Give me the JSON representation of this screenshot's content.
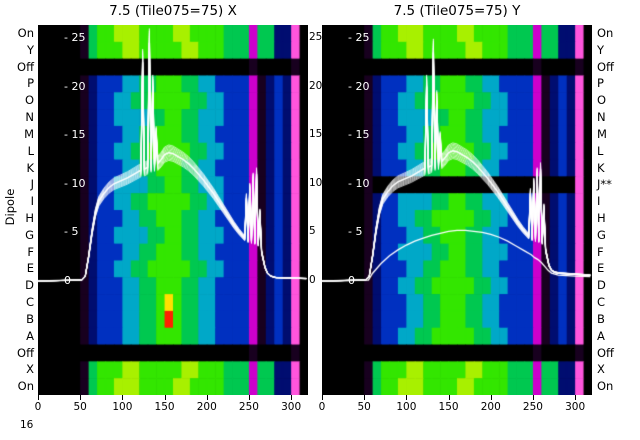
{
  "corner_label": "16",
  "chart_data": {
    "type": "heatmap",
    "ylabel": "Dipole",
    "x_ticks": [
      0,
      50,
      100,
      150,
      200,
      250,
      300
    ],
    "x_max": 320,
    "power_tick_values": [
      25,
      20,
      15,
      10,
      5,
      0
    ],
    "inner_tick_labels": [
      "- 25",
      "- 20",
      "- 15",
      "- 10",
      "- 5",
      "0"
    ],
    "mid_tick_labels": [
      "25",
      "20",
      "15",
      "10",
      "5",
      "0"
    ],
    "row_labels_left": [
      "On",
      "Y",
      "Off",
      "P",
      "O",
      "N",
      "M",
      "L",
      "K",
      "J",
      "I",
      "H",
      "G",
      "F",
      "E",
      "D",
      "C",
      "B",
      "A",
      "Off",
      "X",
      "On"
    ],
    "row_labels_right": [
      "On",
      "Y",
      "Off",
      "P",
      "O",
      "N",
      "M",
      "L",
      "K",
      "J**",
      "I",
      "H",
      "G",
      "F",
      "E",
      "D",
      "C",
      "B",
      "A",
      "Off",
      "X",
      "On"
    ],
    "line_color": "#ffffff",
    "line_factors": [
      1,
      0.97,
      1.03,
      0.95,
      1.05,
      0.98,
      1.02,
      0.96,
      1.04,
      0.99,
      1.01,
      0.94,
      1.06,
      1.0
    ],
    "panels": [
      {
        "title": "7.5 (Tile075=75) X",
        "lines_base": [
          [
            0,
            0
          ],
          [
            52,
            0.1
          ],
          [
            56,
            0.5
          ],
          [
            60,
            2.5
          ],
          [
            64,
            5
          ],
          [
            68,
            7
          ],
          [
            72,
            8.2
          ],
          [
            78,
            9
          ],
          [
            84,
            9.6
          ],
          [
            90,
            10
          ],
          [
            98,
            10.3
          ],
          [
            106,
            10.6
          ],
          [
            114,
            11
          ],
          [
            120,
            11.3
          ],
          [
            122,
            11.4
          ],
          [
            124,
            22.5
          ],
          [
            126,
            11.5
          ],
          [
            130,
            11.7
          ],
          [
            132,
            24.5
          ],
          [
            134,
            11.9
          ],
          [
            136,
            20
          ],
          [
            138,
            12
          ],
          [
            140,
            15
          ],
          [
            142,
            12.1
          ],
          [
            146,
            12.5
          ],
          [
            150,
            13
          ],
          [
            155,
            13.2
          ],
          [
            160,
            13.1
          ],
          [
            166,
            12.8
          ],
          [
            172,
            12.5
          ],
          [
            178,
            12.1
          ],
          [
            184,
            11.6
          ],
          [
            190,
            11
          ],
          [
            196,
            10.4
          ],
          [
            202,
            9.7
          ],
          [
            208,
            9
          ],
          [
            214,
            8.2
          ],
          [
            220,
            7.4
          ],
          [
            226,
            6.6
          ],
          [
            232,
            5.8
          ],
          [
            238,
            5.1
          ],
          [
            242,
            4.7
          ],
          [
            245,
            4.4
          ],
          [
            247,
            8.5
          ],
          [
            249,
            4.2
          ],
          [
            251,
            9.5
          ],
          [
            253,
            4.1
          ],
          [
            255,
            10.5
          ],
          [
            257,
            4
          ],
          [
            259,
            11
          ],
          [
            261,
            3.8
          ],
          [
            263,
            7
          ],
          [
            265,
            3
          ],
          [
            267,
            2.2
          ],
          [
            269,
            1.4
          ],
          [
            272,
            0.8
          ],
          [
            276,
            0.5
          ],
          [
            282,
            0.35
          ],
          [
            300,
            0.3
          ],
          [
            318,
            0.25
          ]
        ],
        "weak_line": null
      },
      {
        "title": "7.5 (Tile075=75) Y",
        "lines_base": [
          [
            0,
            0
          ],
          [
            52,
            0.1
          ],
          [
            56,
            0.5
          ],
          [
            60,
            2.6
          ],
          [
            64,
            5.2
          ],
          [
            68,
            7.2
          ],
          [
            72,
            8.4
          ],
          [
            78,
            9.2
          ],
          [
            84,
            9.8
          ],
          [
            90,
            10.2
          ],
          [
            98,
            10.5
          ],
          [
            106,
            10.8
          ],
          [
            114,
            11.2
          ],
          [
            120,
            11.5
          ],
          [
            122,
            11.6
          ],
          [
            124,
            20
          ],
          [
            126,
            11.7
          ],
          [
            130,
            11.9
          ],
          [
            132,
            23.5
          ],
          [
            134,
            12.1
          ],
          [
            136,
            18.5
          ],
          [
            138,
            12.2
          ],
          [
            140,
            14.5
          ],
          [
            142,
            12.3
          ],
          [
            146,
            12.7
          ],
          [
            150,
            13.2
          ],
          [
            155,
            13.4
          ],
          [
            160,
            13.3
          ],
          [
            166,
            13
          ],
          [
            172,
            12.7
          ],
          [
            178,
            12.3
          ],
          [
            184,
            11.8
          ],
          [
            190,
            11.2
          ],
          [
            196,
            10.6
          ],
          [
            202,
            9.9
          ],
          [
            208,
            9.2
          ],
          [
            214,
            8.4
          ],
          [
            220,
            7.6
          ],
          [
            226,
            6.8
          ],
          [
            232,
            6
          ],
          [
            238,
            5.3
          ],
          [
            242,
            4.9
          ],
          [
            245,
            4.6
          ],
          [
            247,
            9
          ],
          [
            249,
            4.4
          ],
          [
            251,
            10
          ],
          [
            253,
            4.3
          ],
          [
            255,
            11
          ],
          [
            257,
            4.2
          ],
          [
            259,
            11.5
          ],
          [
            261,
            4
          ],
          [
            263,
            7.5
          ],
          [
            265,
            3.2
          ],
          [
            267,
            2.4
          ],
          [
            269,
            1.6
          ],
          [
            272,
            1.1
          ],
          [
            276,
            0.9
          ],
          [
            282,
            0.8
          ],
          [
            300,
            0.7
          ],
          [
            318,
            0.6
          ]
        ],
        "weak_line": [
          [
            0,
            0
          ],
          [
            55,
            0.1
          ],
          [
            60,
            0.8
          ],
          [
            70,
            1.8
          ],
          [
            80,
            2.6
          ],
          [
            90,
            3.2
          ],
          [
            100,
            3.7
          ],
          [
            110,
            4.1
          ],
          [
            120,
            4.4
          ],
          [
            130,
            4.7
          ],
          [
            140,
            4.9
          ],
          [
            150,
            5.1
          ],
          [
            160,
            5.2
          ],
          [
            170,
            5.2
          ],
          [
            180,
            5.1
          ],
          [
            190,
            5
          ],
          [
            200,
            4.8
          ],
          [
            210,
            4.5
          ],
          [
            220,
            4.1
          ],
          [
            230,
            3.6
          ],
          [
            240,
            3.1
          ],
          [
            248,
            2.7
          ],
          [
            252,
            2.4
          ],
          [
            256,
            2.2
          ],
          [
            260,
            1.9
          ],
          [
            264,
            1.5
          ],
          [
            268,
            1.1
          ],
          [
            272,
            0.8
          ],
          [
            280,
            0.6
          ],
          [
            300,
            0.5
          ],
          [
            318,
            0.45
          ]
        ]
      }
    ],
    "heatmap": {
      "palette": [
        "#000000",
        "#18001f",
        "#000d70",
        "#0030c0",
        "#00a8c8",
        "#00c850",
        "#33e600",
        "#a8f000",
        "#cc00cc",
        "#ff55dd",
        "#ffe000",
        "#ff2200"
      ],
      "patterns": {
        "on": [
          [
            5,
            0
          ],
          [
            1,
            1
          ],
          [
            1,
            5
          ],
          [
            2,
            6
          ],
          [
            3,
            7
          ],
          [
            4,
            6
          ],
          [
            2,
            7
          ],
          [
            4,
            6
          ],
          [
            3,
            5
          ],
          [
            1,
            8
          ],
          [
            2,
            5
          ],
          [
            2,
            2
          ],
          [
            1,
            9
          ],
          [
            1,
            0
          ]
        ],
        "green2": [
          [
            5,
            0
          ],
          [
            1,
            1
          ],
          [
            1,
            5
          ],
          [
            3,
            6
          ],
          [
            2,
            7
          ],
          [
            5,
            6
          ],
          [
            2,
            7
          ],
          [
            3,
            6
          ],
          [
            3,
            5
          ],
          [
            1,
            8
          ],
          [
            2,
            5
          ],
          [
            2,
            2
          ],
          [
            1,
            9
          ],
          [
            1,
            0
          ]
        ],
        "off": [
          [
            5,
            0
          ],
          [
            20,
            0
          ],
          [
            1,
            1
          ],
          [
            4,
            0
          ],
          [
            1,
            1
          ],
          [
            1,
            0
          ]
        ],
        "dark": [
          [
            5,
            0
          ],
          [
            1,
            1
          ],
          [
            19,
            0
          ],
          [
            1,
            1
          ],
          [
            4,
            0
          ],
          [
            1,
            9
          ],
          [
            1,
            0
          ]
        ],
        "mid1": [
          [
            5,
            0
          ],
          [
            1,
            1
          ],
          [
            1,
            2
          ],
          [
            3,
            3
          ],
          [
            2,
            4
          ],
          [
            2,
            5
          ],
          [
            3,
            6
          ],
          [
            2,
            5
          ],
          [
            2,
            4
          ],
          [
            4,
            3
          ],
          [
            1,
            8
          ],
          [
            1,
            1
          ],
          [
            1,
            2
          ],
          [
            1,
            3
          ],
          [
            1,
            2
          ],
          [
            1,
            9
          ],
          [
            1,
            0
          ]
        ],
        "mid2": [
          [
            5,
            0
          ],
          [
            1,
            1
          ],
          [
            1,
            2
          ],
          [
            2,
            3
          ],
          [
            2,
            4
          ],
          [
            2,
            5
          ],
          [
            5,
            6
          ],
          [
            2,
            5
          ],
          [
            2,
            4
          ],
          [
            3,
            3
          ],
          [
            1,
            8
          ],
          [
            1,
            1
          ],
          [
            1,
            2
          ],
          [
            1,
            3
          ],
          [
            1,
            2
          ],
          [
            1,
            9
          ],
          [
            1,
            0
          ]
        ],
        "mid3": [
          [
            5,
            0
          ],
          [
            1,
            1
          ],
          [
            1,
            2
          ],
          [
            2,
            3
          ],
          [
            4,
            4
          ],
          [
            2,
            5
          ],
          [
            2,
            6
          ],
          [
            2,
            5
          ],
          [
            3,
            4
          ],
          [
            3,
            3
          ],
          [
            1,
            8
          ],
          [
            1,
            1
          ],
          [
            1,
            2
          ],
          [
            1,
            3
          ],
          [
            1,
            2
          ],
          [
            1,
            9
          ],
          [
            1,
            0
          ]
        ],
        "midY": [
          [
            5,
            0
          ],
          [
            1,
            1
          ],
          [
            1,
            2
          ],
          [
            3,
            3
          ],
          [
            2,
            4
          ],
          [
            2,
            5
          ],
          [
            1,
            6
          ],
          [
            1,
            10
          ],
          [
            1,
            6
          ],
          [
            2,
            5
          ],
          [
            2,
            4
          ],
          [
            4,
            3
          ],
          [
            1,
            8
          ],
          [
            1,
            1
          ],
          [
            1,
            2
          ],
          [
            1,
            3
          ],
          [
            1,
            2
          ],
          [
            1,
            9
          ],
          [
            1,
            0
          ]
        ],
        "midR": [
          [
            5,
            0
          ],
          [
            1,
            1
          ],
          [
            1,
            2
          ],
          [
            3,
            3
          ],
          [
            2,
            4
          ],
          [
            2,
            5
          ],
          [
            1,
            6
          ],
          [
            1,
            11
          ],
          [
            1,
            6
          ],
          [
            2,
            5
          ],
          [
            2,
            4
          ],
          [
            4,
            3
          ],
          [
            1,
            8
          ],
          [
            1,
            1
          ],
          [
            1,
            2
          ],
          [
            1,
            3
          ],
          [
            1,
            2
          ],
          [
            1,
            9
          ],
          [
            1,
            0
          ]
        ]
      },
      "left_rows": [
        "on",
        "green2",
        "off",
        "mid1",
        "mid2",
        "mid3",
        "mid1",
        "mid2",
        "mid1",
        "mid3",
        "mid2",
        "mid1",
        "mid3",
        "mid1",
        "mid2",
        "mid1",
        "midY",
        "midR",
        "mid1",
        "off",
        "green2",
        "on"
      ],
      "right_rows": [
        "on",
        "green2",
        "off",
        "mid1",
        "mid2",
        "mid3",
        "mid1",
        "mid2",
        "mid1",
        "dark",
        "mid3",
        "mid2",
        "mid1",
        "mid3",
        "mid1",
        "mid2",
        "mid1",
        "mid1",
        "mid2",
        "off",
        "green2",
        "on"
      ]
    }
  }
}
